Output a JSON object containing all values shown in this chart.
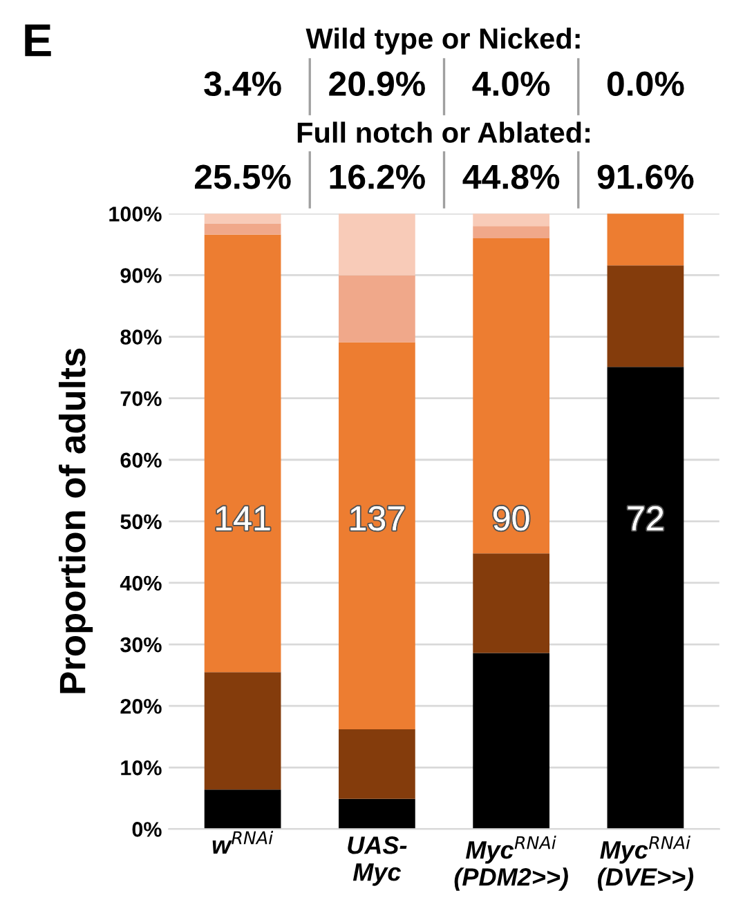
{
  "chart_data": {
    "type": "bar",
    "stacked": true,
    "categories": [
      "w$^{RNAi}$",
      "UAS-\nMyc",
      "Myc$^{RNAi}$\n(PDM2>>)",
      "Myc$^{RNAi}$\n(DVE>>)"
    ],
    "series": [
      {
        "color": "#000000",
        "values": [
          6.4,
          4.9,
          28.6,
          75.1
        ]
      },
      {
        "color": "#843c0c",
        "values": [
          19.1,
          11.3,
          16.2,
          16.5
        ]
      },
      {
        "color": "#ed7d31",
        "values": [
          71.1,
          62.9,
          51.2,
          8.4
        ]
      },
      {
        "color": "#f0a88a",
        "values": [
          1.8,
          10.9,
          2.0,
          0
        ]
      },
      {
        "color": "#f8cbb8",
        "values": [
          1.6,
          10.0,
          2.0,
          0
        ]
      }
    ],
    "ylabel": "Proportion of adults",
    "ylim": [
      0,
      100
    ],
    "yticks": [
      {
        "value": 0,
        "label": "0%"
      },
      {
        "value": 10,
        "label": "10%"
      },
      {
        "value": 20,
        "label": "20%"
      },
      {
        "value": 30,
        "label": "30%"
      },
      {
        "value": 40,
        "label": "40%"
      },
      {
        "value": 50,
        "label": "50%"
      },
      {
        "value": 60,
        "label": "60%"
      },
      {
        "value": 70,
        "label": "70%"
      },
      {
        "value": 80,
        "label": "80%"
      },
      {
        "value": 90,
        "label": "90%"
      },
      {
        "value": 100,
        "label": "100%"
      }
    ],
    "grid": "y",
    "annotations": [
      "E",
      "Wild type or Nicked:",
      "3.4%",
      "20.9%",
      "4.0%",
      "0.0%",
      "Full notch or Ablated:",
      "25.5%",
      "16.2%",
      "44.8%",
      "91.6%",
      "141",
      "137",
      "90",
      "72"
    ]
  }
}
